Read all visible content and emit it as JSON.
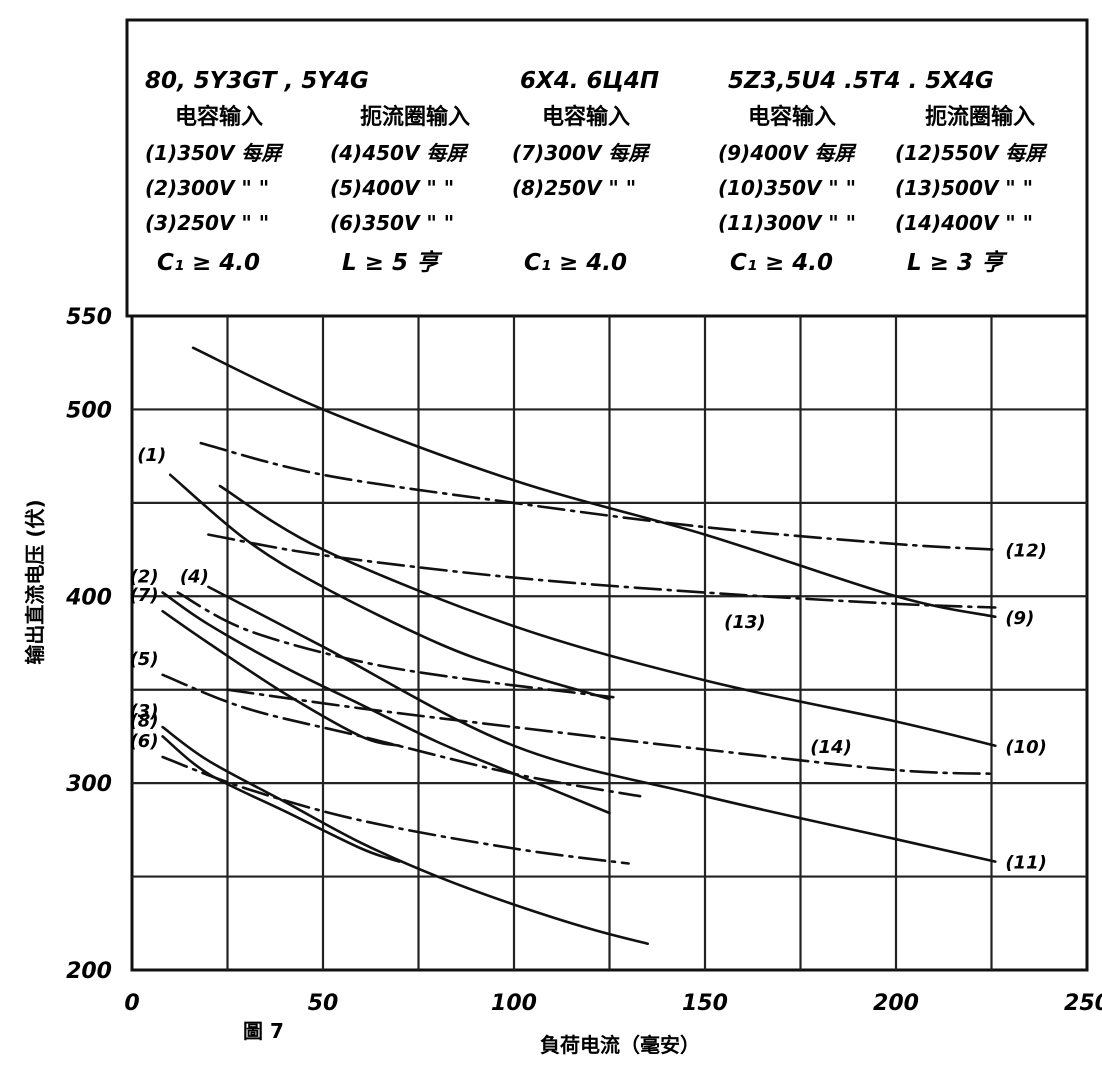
{
  "figure_label": "圖 7",
  "chart_data": {
    "type": "line",
    "title": "",
    "xlabel": "負荷电流（毫安）",
    "ylabel": "输出直流电压 (伏)",
    "xlim": [
      0,
      250
    ],
    "ylim": [
      200,
      550
    ],
    "x_ticks": [
      "0",
      "50",
      "100",
      "150",
      "200",
      "250"
    ],
    "y_ticks": [
      "200",
      "300",
      "400",
      "500",
      "550"
    ],
    "grid": true,
    "legend": {
      "groups": [
        {
          "header": "80, 5Y3GT , 5Y4G",
          "columns": [
            {
              "heading": "电容输入",
              "items": [
                "(1)350V 每屏",
                "(2)300V \" \"",
                "(3)250V \" \""
              ],
              "condition": "C₁ ≥ 4.0"
            },
            {
              "heading": "扼流圈输入",
              "items": [
                "(4)450V 每屏",
                "(5)400V \" \"",
                "(6)350V \" \""
              ],
              "condition": "L ≥ 5 亨"
            }
          ]
        },
        {
          "header": "6X4. 6Ц4П",
          "columns": [
            {
              "heading": "电容输入",
              "items": [
                "(7)300V 每屏",
                "(8)250V \" \""
              ],
              "condition": "C₁ ≥ 4.0"
            }
          ]
        },
        {
          "header": "5Z3,5U4 .5T4 . 5X4G",
          "columns": [
            {
              "heading": "电容输入",
              "items": [
                "(9)400V 每屏",
                "(10)350V \" \"",
                "(11)300V \" \""
              ],
              "condition": "C₁ ≥ 4.0"
            },
            {
              "heading": "扼流圈输入",
              "items": [
                "(12)550V 每屏",
                "(13)500V \" \"",
                "(14)400V \" \""
              ],
              "condition": "L ≥ 3 亨"
            }
          ]
        }
      ]
    },
    "series": [
      {
        "name": "(1)",
        "style": "solid",
        "label": "(1)",
        "points": [
          [
            10,
            465
          ],
          [
            30,
            430
          ],
          [
            50,
            405
          ],
          [
            80,
            375
          ],
          [
            100,
            360
          ],
          [
            120,
            348
          ],
          [
            125,
            345
          ]
        ]
      },
      {
        "name": "(2)",
        "style": "solid",
        "label": "(2)",
        "points": [
          [
            8,
            402
          ],
          [
            20,
            385
          ],
          [
            40,
            362
          ],
          [
            60,
            342
          ],
          [
            80,
            322
          ],
          [
            100,
            305
          ],
          [
            125,
            284
          ]
        ]
      },
      {
        "name": "(3)",
        "style": "solid",
        "label": "(3)",
        "points": [
          [
            8,
            330
          ],
          [
            20,
            312
          ],
          [
            40,
            290
          ],
          [
            60,
            268
          ],
          [
            80,
            250
          ],
          [
            100,
            235
          ],
          [
            120,
            222
          ],
          [
            135,
            214
          ]
        ]
      },
      {
        "name": "(4)",
        "style": "dashdot",
        "label": "(4)",
        "points": [
          [
            12,
            402
          ],
          [
            30,
            382
          ],
          [
            60,
            365
          ],
          [
            90,
            355
          ],
          [
            126,
            346
          ]
        ]
      },
      {
        "name": "(5)",
        "style": "dashdot",
        "label": "(5)",
        "points": [
          [
            8,
            358
          ],
          [
            30,
            340
          ],
          [
            60,
            325
          ],
          [
            100,
            305
          ],
          [
            133,
            293
          ]
        ]
      },
      {
        "name": "(6)",
        "style": "dashdot",
        "label": "(6)",
        "points": [
          [
            8,
            314
          ],
          [
            30,
            297
          ],
          [
            60,
            280
          ],
          [
            100,
            265
          ],
          [
            130,
            257
          ]
        ]
      },
      {
        "name": "(7)",
        "style": "solid",
        "label": "(7)",
        "points": [
          [
            8,
            392
          ],
          [
            20,
            375
          ],
          [
            40,
            348
          ],
          [
            60,
            325
          ],
          [
            70,
            320
          ]
        ]
      },
      {
        "name": "(8)",
        "style": "solid",
        "label": "(8)",
        "points": [
          [
            8,
            325
          ],
          [
            20,
            305
          ],
          [
            40,
            285
          ],
          [
            60,
            265
          ],
          [
            70,
            258
          ]
        ]
      },
      {
        "name": "(9)",
        "style": "solid",
        "label": "(9)",
        "points": [
          [
            16,
            533
          ],
          [
            50,
            500
          ],
          [
            100,
            462
          ],
          [
            150,
            433
          ],
          [
            200,
            400
          ],
          [
            226,
            389
          ]
        ]
      },
      {
        "name": "(10)",
        "style": "solid",
        "label": "(10)",
        "points": [
          [
            23,
            459
          ],
          [
            50,
            425
          ],
          [
            100,
            384
          ],
          [
            150,
            355
          ],
          [
            200,
            333
          ],
          [
            226,
            320
          ]
        ]
      },
      {
        "name": "(11)",
        "style": "solid",
        "label": "(11)",
        "points": [
          [
            20,
            405
          ],
          [
            50,
            373
          ],
          [
            100,
            320
          ],
          [
            150,
            293
          ],
          [
            200,
            270
          ],
          [
            226,
            258
          ]
        ]
      },
      {
        "name": "(12)",
        "style": "dashdot",
        "label": "(12)",
        "points": [
          [
            18,
            482
          ],
          [
            50,
            465
          ],
          [
            100,
            450
          ],
          [
            150,
            437
          ],
          [
            200,
            428
          ],
          [
            226,
            425
          ]
        ]
      },
      {
        "name": "(13)",
        "style": "dashdot",
        "label": "(13)",
        "points": [
          [
            20,
            433
          ],
          [
            50,
            422
          ],
          [
            100,
            410
          ],
          [
            150,
            402
          ],
          [
            200,
            396
          ],
          [
            226,
            394
          ]
        ]
      },
      {
        "name": "(14)",
        "style": "dashdot",
        "label": "(14)",
        "points": [
          [
            25,
            350
          ],
          [
            60,
            340
          ],
          [
            100,
            330
          ],
          [
            150,
            318
          ],
          [
            200,
            307
          ],
          [
            226,
            305
          ]
        ]
      }
    ]
  }
}
